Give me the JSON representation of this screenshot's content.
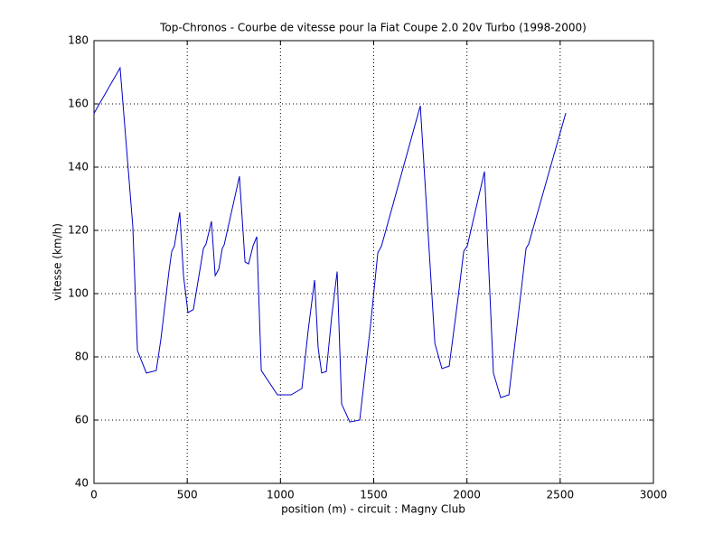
{
  "chart_data": {
    "type": "line",
    "title": "Top-Chronos - Courbe de vitesse pour la Fiat Coupe 2.0 20v Turbo (1998-2000)",
    "x_label": "position (m) - circuit : Magny Club",
    "y_label": "vitesse (km/h)",
    "x": [
      0,
      29,
      140,
      175,
      208,
      233,
      281,
      334,
      359,
      402,
      417,
      431,
      460,
      480,
      504,
      533,
      587,
      601,
      630,
      650,
      669,
      688,
      698,
      780,
      810,
      829,
      853,
      873,
      897,
      984,
      1057,
      1115,
      1149,
      1183,
      1202,
      1221,
      1246,
      1275,
      1304,
      1328,
      1372,
      1425,
      1483,
      1522,
      1542,
      1750,
      1828,
      1866,
      1905,
      1949,
      1983,
      2002,
      2094,
      2142,
      2181,
      2225,
      2293,
      2317,
      2331,
      2530
    ],
    "series": [
      {
        "name": "vitesse",
        "color": "#0000c8",
        "values": [
          157,
          160,
          171.4,
          145.7,
          121.4,
          82,
          74.9,
          75.7,
          85.7,
          107,
          113.4,
          115,
          125.7,
          105.7,
          94,
          95,
          114.3,
          115.7,
          122.9,
          105.7,
          107.7,
          114.3,
          115.4,
          137.1,
          110,
          109.4,
          115.1,
          118,
          75.7,
          68,
          68,
          70,
          88.6,
          104.3,
          82.9,
          74.9,
          75.4,
          92.9,
          107,
          65.1,
          59.4,
          60,
          90,
          112.9,
          115.1,
          159.4,
          84.3,
          76.3,
          77.1,
          97.1,
          113.4,
          115.1,
          138.6,
          74.9,
          67.1,
          68,
          102,
          114.3,
          115.7,
          157.1
        ]
      }
    ],
    "xlim": [
      0,
      3000
    ],
    "xticks": [
      0,
      500,
      1000,
      1500,
      2000,
      2500,
      3000
    ],
    "ylim": [
      40,
      180
    ],
    "yticks": [
      40,
      60,
      80,
      100,
      120,
      140,
      160,
      180
    ],
    "grid": true
  }
}
